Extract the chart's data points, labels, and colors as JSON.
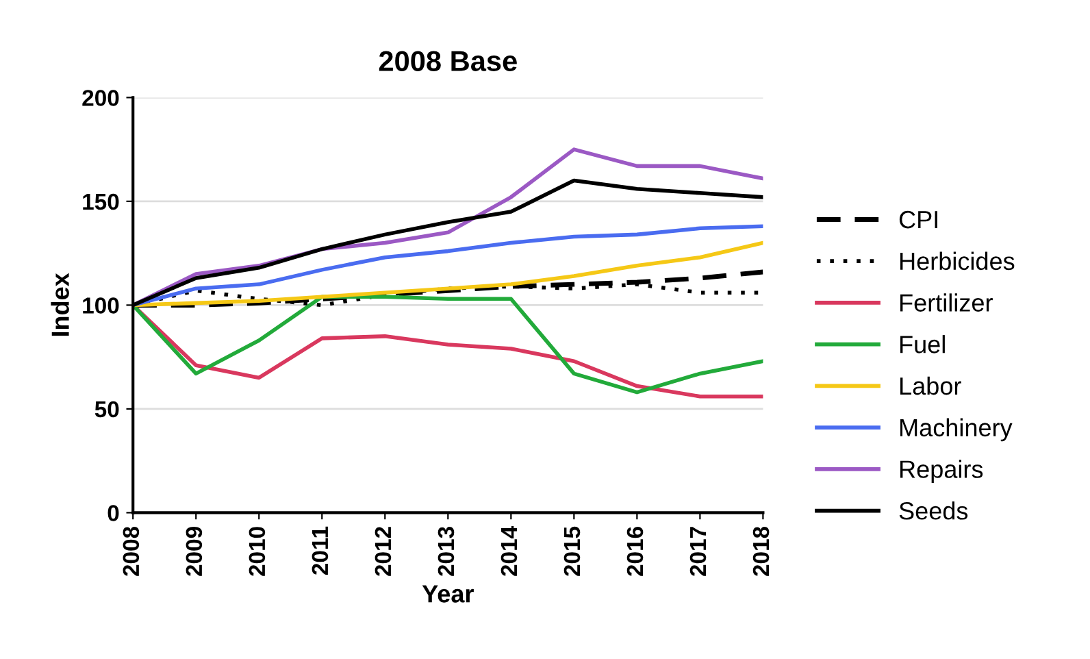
{
  "chart_data": {
    "type": "line",
    "title": "2008 Base",
    "xlabel": "Year",
    "ylabel": "Index",
    "categories": [
      "2008",
      "2009",
      "2010",
      "2011",
      "2012",
      "2013",
      "2014",
      "2015",
      "2016",
      "2017",
      "2018"
    ],
    "ylim": [
      0,
      200
    ],
    "yticks": [
      0,
      50,
      100,
      150,
      200
    ],
    "grid": "y",
    "legend": "right",
    "marker": "none",
    "series": [
      {
        "name": "CPI",
        "color": "#000000",
        "line_style": "dashed",
        "values": [
          100,
          100,
          101,
          103,
          105,
          107,
          109,
          110,
          111,
          113,
          116
        ]
      },
      {
        "name": "Herbicides",
        "color": "#000000",
        "line_style": "dotted",
        "values": [
          100,
          107,
          103,
          100,
          105,
          108,
          109,
          108,
          110,
          106,
          106
        ]
      },
      {
        "name": "Fertilizer",
        "color": "#d9385e",
        "values": [
          100,
          71,
          65,
          84,
          85,
          81,
          79,
          73,
          61,
          56,
          56
        ]
      },
      {
        "name": "Fuel",
        "color": "#22aa3a",
        "values": [
          100,
          67,
          83,
          104,
          104,
          103,
          103,
          67,
          58,
          67,
          73
        ]
      },
      {
        "name": "Labor",
        "color": "#f5c816",
        "values": [
          100,
          101,
          102,
          104,
          106,
          108,
          110,
          114,
          119,
          123,
          130
        ]
      },
      {
        "name": "Machinery",
        "color": "#4a6cf0",
        "values": [
          100,
          108,
          110,
          117,
          123,
          126,
          130,
          133,
          134,
          137,
          138
        ]
      },
      {
        "name": "Repairs",
        "color": "#9b59c4",
        "values": [
          100,
          115,
          119,
          127,
          130,
          135,
          152,
          175,
          167,
          167,
          161
        ]
      },
      {
        "name": "Seeds",
        "color": "#000000",
        "values": [
          100,
          113,
          118,
          127,
          134,
          140,
          145,
          160,
          156,
          154,
          152
        ]
      }
    ]
  }
}
